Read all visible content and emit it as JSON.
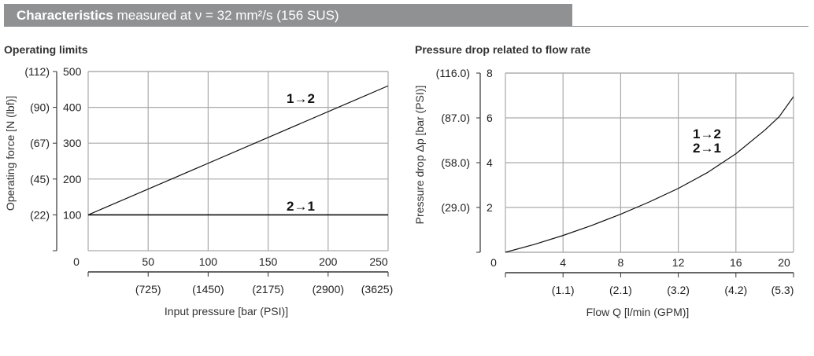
{
  "header": {
    "title_bold": "Characteristics",
    "title_rest": "measured at ν = 32 mm²/s (156 SUS)"
  },
  "chart_data": [
    {
      "type": "line",
      "title": "Operating limits",
      "xlabel": "Input pressure [bar (PSI)]",
      "ylabel": "Operating force [N (lbf)]",
      "xlim": [
        0,
        250
      ],
      "ylim": [
        0,
        500
      ],
      "grid": true,
      "x_ticks": [
        0,
        50,
        100,
        150,
        200,
        250
      ],
      "x_ticks_secondary": [
        "",
        "(725)",
        "(1450)",
        "(2175)",
        "(2900)",
        "(3625)"
      ],
      "y_ticks": [
        100,
        200,
        300,
        400,
        500
      ],
      "y_ticks_secondary": [
        "(22)",
        "(45)",
        "(67)",
        "(90)",
        "(112)"
      ],
      "series": [
        {
          "name": "1→2",
          "x": [
            0,
            250
          ],
          "y": [
            100,
            460
          ]
        },
        {
          "name": "2→1",
          "x": [
            0,
            250
          ],
          "y": [
            100,
            100
          ]
        }
      ],
      "annotations": [
        "1→2",
        "2→1"
      ]
    },
    {
      "type": "line",
      "title": "Pressure drop related to flow rate",
      "xlabel": "Flow Q [l/min (GPM)]",
      "ylabel": "Pressure drop Δp [bar (PSI)]",
      "xlim": [
        0,
        20
      ],
      "ylim": [
        0,
        8
      ],
      "grid": true,
      "x_ticks": [
        0,
        4,
        8,
        12,
        16,
        20
      ],
      "x_ticks_secondary": [
        "",
        "(1.1)",
        "(2.1)",
        "(3.2)",
        "(4.2)",
        "(5.3)"
      ],
      "y_ticks": [
        0,
        2,
        4,
        6,
        8
      ],
      "y_ticks_secondary": [
        "",
        "(29.0)",
        "(58.0)",
        "(87.0)",
        "(116.0)"
      ],
      "series": [
        {
          "name": "1→2 / 2→1",
          "x": [
            0,
            2,
            4,
            6,
            8,
            10,
            12,
            14,
            16,
            18,
            19,
            20
          ],
          "y": [
            0,
            0.35,
            0.75,
            1.2,
            1.7,
            2.25,
            2.85,
            3.55,
            4.4,
            5.45,
            6.05,
            6.95
          ]
        }
      ],
      "annotations": [
        "1→2",
        "2→1"
      ]
    }
  ]
}
